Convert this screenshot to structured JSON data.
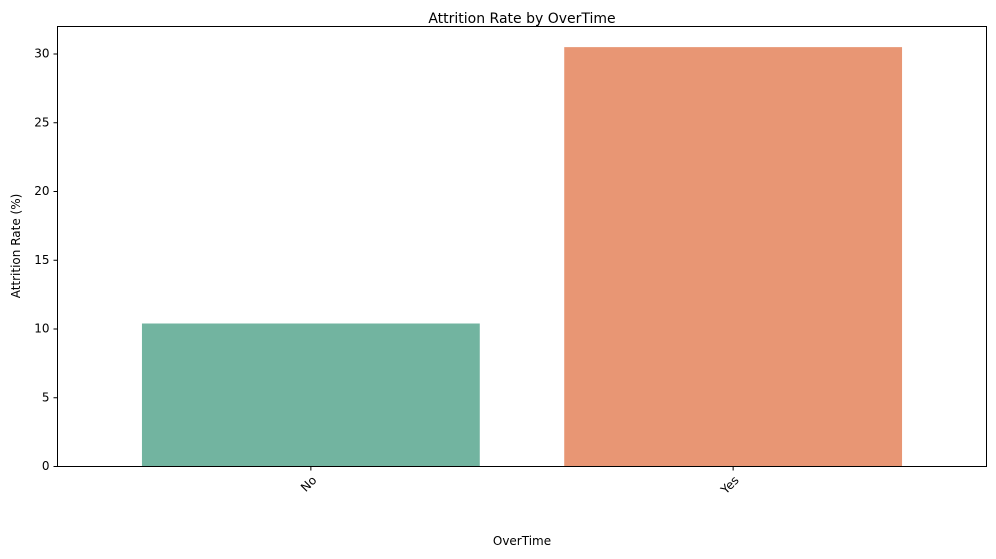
{
  "chart_data": {
    "type": "bar",
    "title": "Attrition Rate by OverTime",
    "xlabel": "OverTime",
    "ylabel": "Attrition Rate (%)",
    "categories": [
      "No",
      "Yes"
    ],
    "values": [
      10.4,
      30.5
    ],
    "colors": [
      "#72b4a0",
      "#e89674"
    ],
    "ylim": [
      0,
      32
    ],
    "yticks": [
      0,
      5,
      10,
      15,
      20,
      25,
      30
    ],
    "xtick_rotation_deg": 45,
    "grid": false,
    "legend": "none"
  }
}
